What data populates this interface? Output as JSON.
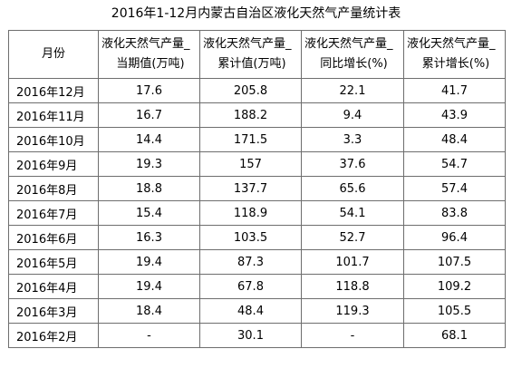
{
  "title": "2016年1-12月内蒙古自治区液化天然气产量统计表",
  "columns": [
    {
      "line1": "月份",
      "line2": ""
    },
    {
      "line1": "液化天然气产量_",
      "line2": "当期值(万吨)"
    },
    {
      "line1": "液化天然气产量_",
      "line2": "累计值(万吨)"
    },
    {
      "line1": "液化天然气产量_",
      "line2": "同比增长(%)"
    },
    {
      "line1": "液化天然气产量_",
      "line2": "累计增长(%)"
    }
  ],
  "rows": [
    [
      "2016年12月",
      "17.6",
      "205.8",
      "22.1",
      "41.7"
    ],
    [
      "2016年11月",
      "16.7",
      "188.2",
      "9.4",
      "43.9"
    ],
    [
      "2016年10月",
      "14.4",
      "171.5",
      "3.3",
      "48.4"
    ],
    [
      "2016年9月",
      "19.3",
      "157",
      "37.6",
      "54.7"
    ],
    [
      "2016年8月",
      "18.8",
      "137.7",
      "65.6",
      "57.4"
    ],
    [
      "2016年7月",
      "15.4",
      "118.9",
      "54.1",
      "83.8"
    ],
    [
      "2016年6月",
      "16.3",
      "103.5",
      "52.7",
      "96.4"
    ],
    [
      "2016年5月",
      "19.4",
      "87.3",
      "101.7",
      "107.5"
    ],
    [
      "2016年4月",
      "19.4",
      "67.8",
      "118.8",
      "109.2"
    ],
    [
      "2016年3月",
      "18.4",
      "48.4",
      "119.3",
      "105.5"
    ],
    [
      "2016年2月",
      "-",
      "30.1",
      "-",
      "68.1"
    ]
  ]
}
